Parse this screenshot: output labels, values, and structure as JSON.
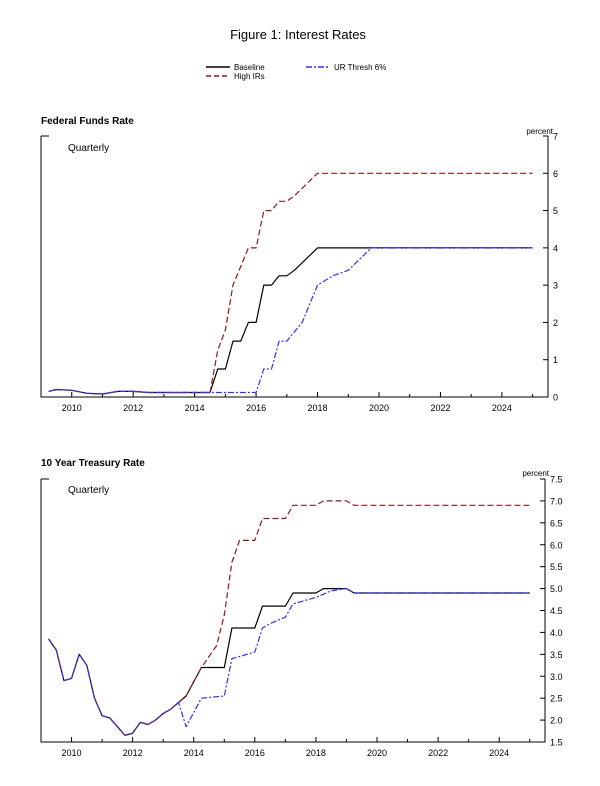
{
  "figure": {
    "title": "Figure 1: Interest Rates",
    "legend": [
      {
        "name": "Baseline",
        "color": "#000000",
        "dash": "solid"
      },
      {
        "name": "High IRs",
        "color": "#8b1a1a",
        "dash": "dashed"
      },
      {
        "name": "UR Thresh 6%",
        "color": "#3333ee",
        "dash": "dashdot"
      }
    ]
  },
  "chart_data": [
    {
      "type": "line",
      "title": "Federal Funds Rate",
      "annotation": "Quarterly",
      "ylabel": "percent",
      "xlim": [
        2009,
        2025.5
      ],
      "ylim": [
        0,
        7
      ],
      "x_ticks": [
        2010,
        2012,
        2014,
        2016,
        2018,
        2020,
        2022,
        2024
      ],
      "y_ticks": [
        0,
        1,
        2,
        3,
        4,
        5,
        6,
        7
      ],
      "y_tick_labels": [
        "0",
        "1",
        "2",
        "3",
        "4",
        "5",
        "6",
        "7"
      ],
      "grid": false,
      "series": [
        {
          "name": "Baseline",
          "color": "#000000",
          "dash": "solid",
          "x": [
            2009.25,
            2009.5,
            2010,
            2010.5,
            2011,
            2011.5,
            2012,
            2012.5,
            2013,
            2014,
            2014.5,
            2014.75,
            2015,
            2015.25,
            2015.5,
            2015.75,
            2016,
            2016.25,
            2016.5,
            2016.75,
            2017,
            2017.25,
            2018,
            2019,
            2020,
            2022,
            2025
          ],
          "y": [
            0.15,
            0.2,
            0.18,
            0.1,
            0.08,
            0.15,
            0.15,
            0.12,
            0.12,
            0.12,
            0.12,
            0.75,
            0.75,
            1.5,
            1.5,
            2.0,
            2.0,
            3.0,
            3.0,
            3.25,
            3.25,
            3.4,
            4.0,
            4.0,
            4.0,
            4.0,
            4.0
          ]
        },
        {
          "name": "High IRs",
          "color": "#8b1a1a",
          "dash": "dashed",
          "x": [
            2009.25,
            2009.5,
            2010,
            2010.5,
            2011,
            2011.5,
            2012,
            2012.5,
            2013,
            2014,
            2014.5,
            2014.75,
            2015,
            2015.25,
            2015.5,
            2015.75,
            2016,
            2016.25,
            2016.5,
            2016.75,
            2017,
            2017.25,
            2018,
            2019,
            2020,
            2022,
            2025
          ],
          "y": [
            0.15,
            0.2,
            0.18,
            0.1,
            0.08,
            0.15,
            0.15,
            0.12,
            0.12,
            0.12,
            0.12,
            1.25,
            1.8,
            3.0,
            3.5,
            4.0,
            4.0,
            5.0,
            5.0,
            5.25,
            5.25,
            5.4,
            6.0,
            6.0,
            6.0,
            6.0,
            6.0
          ]
        },
        {
          "name": "UR Thresh 6%",
          "color": "#3333ee",
          "dash": "dashdot",
          "x": [
            2009.25,
            2009.5,
            2010,
            2010.5,
            2011,
            2011.5,
            2012,
            2012.5,
            2013,
            2014,
            2014.5,
            2015,
            2015.5,
            2016,
            2016.25,
            2016.5,
            2016.75,
            2017,
            2017.5,
            2018,
            2018.5,
            2019,
            2019.75,
            2020,
            2022,
            2025
          ],
          "y": [
            0.15,
            0.2,
            0.18,
            0.1,
            0.08,
            0.15,
            0.15,
            0.12,
            0.12,
            0.12,
            0.12,
            0.12,
            0.12,
            0.12,
            0.75,
            0.75,
            1.5,
            1.5,
            2.0,
            3.0,
            3.25,
            3.4,
            4.0,
            4.0,
            4.0,
            4.0
          ]
        }
      ]
    },
    {
      "type": "line",
      "title": "10 Year Treasury Rate",
      "annotation": "Quarterly",
      "ylabel": "percent",
      "xlim": [
        2009,
        2025.5
      ],
      "ylim": [
        1.5,
        7.5
      ],
      "x_ticks": [
        2010,
        2012,
        2014,
        2016,
        2018,
        2020,
        2022,
        2024
      ],
      "y_ticks": [
        1.5,
        2.0,
        2.5,
        3.0,
        3.5,
        4.0,
        4.5,
        5.0,
        5.5,
        6.0,
        6.5,
        7.0,
        7.5
      ],
      "y_tick_labels": [
        "1.5",
        "2.0",
        "2.5",
        "3.0",
        "3.5",
        "4.0",
        "4.5",
        "5.0",
        "5.5",
        "6.0",
        "6.5",
        "7.0",
        "7.5"
      ],
      "grid": false,
      "series": [
        {
          "name": "Baseline",
          "color": "#000000",
          "dash": "solid",
          "x": [
            2009.25,
            2009.5,
            2009.75,
            2010,
            2010.25,
            2010.5,
            2010.75,
            2011,
            2011.25,
            2011.5,
            2011.75,
            2012,
            2012.25,
            2012.5,
            2012.75,
            2013,
            2013.25,
            2013.5,
            2013.75,
            2014.25,
            2015,
            2015.25,
            2016,
            2016.25,
            2017,
            2017.25,
            2018,
            2018.25,
            2019,
            2019.25,
            2020,
            2022,
            2025
          ],
          "y": [
            3.85,
            3.6,
            2.9,
            2.95,
            3.5,
            3.25,
            2.5,
            2.1,
            2.05,
            1.85,
            1.65,
            1.7,
            1.95,
            1.9,
            2.0,
            2.15,
            2.25,
            2.4,
            2.55,
            3.2,
            3.2,
            4.1,
            4.1,
            4.6,
            4.6,
            4.9,
            4.9,
            5.0,
            5.0,
            4.9,
            4.9,
            4.9,
            4.9
          ]
        },
        {
          "name": "High IRs",
          "color": "#8b1a1a",
          "dash": "dashed",
          "x": [
            2009.25,
            2009.5,
            2009.75,
            2010,
            2010.25,
            2010.5,
            2010.75,
            2011,
            2011.25,
            2011.5,
            2011.75,
            2012,
            2012.25,
            2012.5,
            2012.75,
            2013,
            2013.25,
            2013.5,
            2013.75,
            2014.25,
            2014.75,
            2015,
            2015.25,
            2015.5,
            2016,
            2016.25,
            2017,
            2017.25,
            2018,
            2018.25,
            2019,
            2019.25,
            2020,
            2022,
            2025
          ],
          "y": [
            3.85,
            3.6,
            2.9,
            2.95,
            3.5,
            3.25,
            2.5,
            2.1,
            2.05,
            1.85,
            1.65,
            1.7,
            1.95,
            1.9,
            2.0,
            2.15,
            2.25,
            2.4,
            2.55,
            3.2,
            3.7,
            4.4,
            5.6,
            6.1,
            6.1,
            6.6,
            6.6,
            6.9,
            6.9,
            7.0,
            7.0,
            6.9,
            6.9,
            6.9,
            6.9
          ]
        },
        {
          "name": "UR Thresh 6%",
          "color": "#3333ee",
          "dash": "dashdot",
          "x": [
            2009.25,
            2009.5,
            2009.75,
            2010,
            2010.25,
            2010.5,
            2010.75,
            2011,
            2011.25,
            2011.5,
            2011.75,
            2012,
            2012.25,
            2012.5,
            2012.75,
            2013,
            2013.25,
            2013.5,
            2013.75,
            2014.25,
            2015,
            2015.25,
            2016,
            2016.25,
            2016.5,
            2017,
            2017.25,
            2018,
            2018.5,
            2019,
            2019.25,
            2020,
            2022,
            2025
          ],
          "y": [
            3.85,
            3.6,
            2.9,
            2.95,
            3.5,
            3.25,
            2.5,
            2.1,
            2.05,
            1.85,
            1.65,
            1.7,
            1.95,
            1.9,
            2.0,
            2.15,
            2.25,
            2.4,
            1.85,
            2.5,
            2.55,
            3.4,
            3.55,
            4.1,
            4.2,
            4.35,
            4.65,
            4.8,
            4.95,
            5.0,
            4.9,
            4.9,
            4.9,
            4.9
          ]
        }
      ]
    }
  ]
}
